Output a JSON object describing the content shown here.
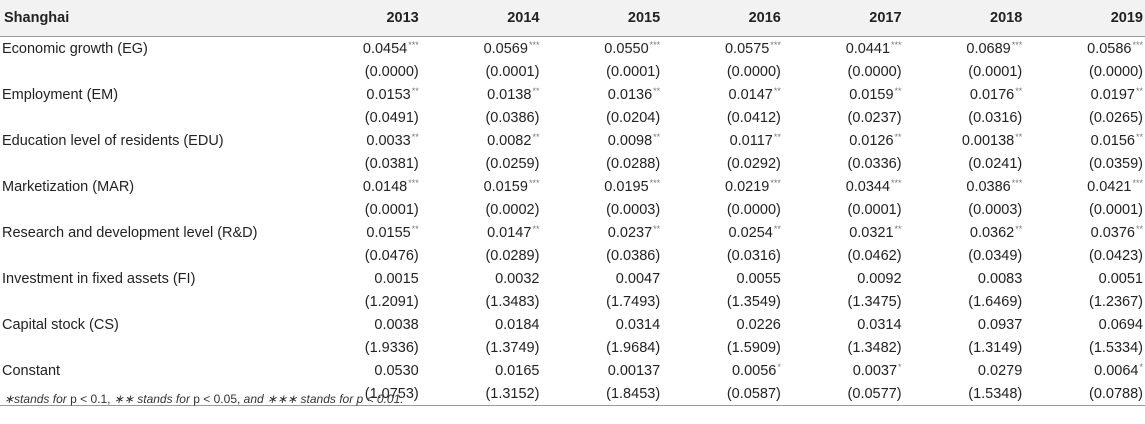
{
  "table": {
    "corner_label": "Shanghai",
    "years": [
      "2013",
      "2014",
      "2015",
      "2016",
      "2017",
      "2018",
      "2019"
    ],
    "rows": [
      {
        "label": "Economic growth (EG)",
        "values": [
          [
            "0.0454",
            "***"
          ],
          [
            "0.0569",
            "***"
          ],
          [
            "0.0550",
            "***"
          ],
          [
            "0.0575",
            "***"
          ],
          [
            "0.0441",
            "***"
          ],
          [
            "0.0689",
            "***"
          ],
          [
            "0.0586",
            "***"
          ]
        ],
        "pvalues": [
          "(0.0000)",
          "(0.0001)",
          "(0.0001)",
          "(0.0000)",
          "(0.0000)",
          "(0.0001)",
          "(0.0000)"
        ]
      },
      {
        "label": "Employment (EM)",
        "values": [
          [
            "0.0153",
            "**"
          ],
          [
            "0.0138",
            "**"
          ],
          [
            "0.0136",
            "**"
          ],
          [
            "0.0147",
            "**"
          ],
          [
            "0.0159",
            "**"
          ],
          [
            "0.0176",
            "**"
          ],
          [
            "0.0197",
            "**"
          ]
        ],
        "pvalues": [
          "(0.0491)",
          "(0.0386)",
          "(0.0204)",
          "(0.0412)",
          "(0.0237)",
          "(0.0316)",
          "(0.0265)"
        ]
      },
      {
        "label": "Education level of residents (EDU)",
        "values": [
          [
            "0.0033",
            "**"
          ],
          [
            "0.0082",
            "**"
          ],
          [
            "0.0098",
            "**"
          ],
          [
            "0.0117",
            "**"
          ],
          [
            "0.0126",
            "**"
          ],
          [
            "0.00138",
            "**"
          ],
          [
            "0.0156",
            "**"
          ]
        ],
        "pvalues": [
          "(0.0381)",
          "(0.0259)",
          "(0.0288)",
          "(0.0292)",
          "(0.0336)",
          "(0.0241)",
          "(0.0359)"
        ]
      },
      {
        "label": "Marketization (MAR)",
        "values": [
          [
            "0.0148",
            "***"
          ],
          [
            "0.0159",
            "***"
          ],
          [
            "0.0195",
            "***"
          ],
          [
            "0.0219",
            "***"
          ],
          [
            "0.0344",
            "***"
          ],
          [
            "0.0386",
            "***"
          ],
          [
            "0.0421",
            "***"
          ]
        ],
        "pvalues": [
          "(0.0001)",
          "(0.0002)",
          "(0.0003)",
          "(0.0000)",
          "(0.0001)",
          "(0.0003)",
          "(0.0001)"
        ]
      },
      {
        "label": "Research and development level (R&D)",
        "values": [
          [
            "0.0155",
            "**"
          ],
          [
            "0.0147",
            "**"
          ],
          [
            "0.0237",
            "**"
          ],
          [
            "0.0254",
            "**"
          ],
          [
            "0.0321",
            "**"
          ],
          [
            "0.0362",
            "**"
          ],
          [
            "0.0376",
            "**"
          ]
        ],
        "pvalues": [
          "(0.0476)",
          "(0.0289)",
          "(0.0386)",
          "(0.0316)",
          "(0.0462)",
          "(0.0349)",
          "(0.0423)"
        ]
      },
      {
        "label": "Investment in fixed assets (FI)",
        "values": [
          [
            "0.0015",
            ""
          ],
          [
            "0.0032",
            ""
          ],
          [
            "0.0047",
            ""
          ],
          [
            "0.0055",
            ""
          ],
          [
            "0.0092",
            ""
          ],
          [
            "0.0083",
            ""
          ],
          [
            "0.0051",
            ""
          ]
        ],
        "pvalues": [
          "(1.2091)",
          "(1.3483)",
          "(1.7493)",
          "(1.3549)",
          "(1.3475)",
          "(1.6469)",
          "(1.2367)"
        ]
      },
      {
        "label": "Capital stock (CS)",
        "values": [
          [
            "0.0038",
            ""
          ],
          [
            "0.0184",
            ""
          ],
          [
            "0.0314",
            ""
          ],
          [
            "0.0226",
            ""
          ],
          [
            "0.0314",
            ""
          ],
          [
            "0.0937",
            ""
          ],
          [
            "0.0694",
            ""
          ]
        ],
        "pvalues": [
          "(1.9336)",
          "(1.3749)",
          "(1.9684)",
          "(1.5909)",
          "(1.3482)",
          "(1.3149)",
          "(1.5334)"
        ]
      },
      {
        "label": "Constant",
        "values": [
          [
            "0.0530",
            ""
          ],
          [
            "0.0165",
            ""
          ],
          [
            "0.00137",
            ""
          ],
          [
            "0.0056",
            "*"
          ],
          [
            "0.0037",
            "*"
          ],
          [
            "0.0279",
            ""
          ],
          [
            "0.0064",
            "*"
          ]
        ],
        "pvalues": [
          "(1.0753)",
          "(1.3152)",
          "(1.8453)",
          "(0.0587)",
          "(0.0577)",
          "(1.5348)",
          "(0.0788)"
        ]
      }
    ]
  },
  "footnote": {
    "parts": [
      {
        "text": "∗stands for ",
        "italic": true
      },
      {
        "text": "p < 0.1, ",
        "italic": false
      },
      {
        "text": "∗∗ stands for ",
        "italic": true
      },
      {
        "text": "p < 0.05, ",
        "italic": false
      },
      {
        "text": "and ∗∗∗ stands for ",
        "italic": true
      },
      {
        "text": "p < 0.01.",
        "italic": true
      }
    ]
  }
}
